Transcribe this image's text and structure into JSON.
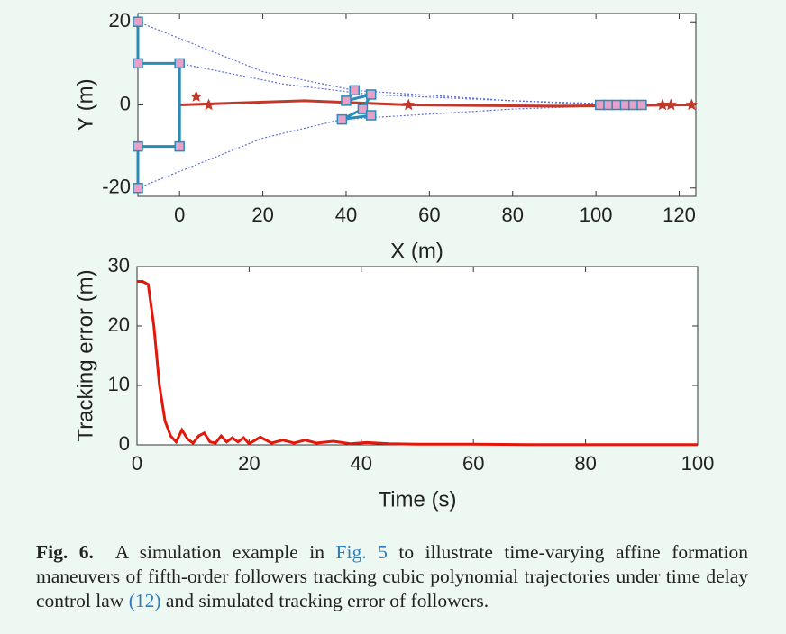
{
  "chart_data": [
    {
      "type": "line",
      "xlabel": "X (m)",
      "ylabel": "Y (m)",
      "xlim": [
        -10,
        124
      ],
      "ylim": [
        -22,
        22
      ],
      "xticks": [
        0,
        20,
        40,
        60,
        80,
        100,
        120
      ],
      "yticks": [
        -20,
        0,
        20
      ],
      "series": [
        {
          "color": "#5b6fd6",
          "linestyle": "dotted",
          "marker": "none",
          "x": [
            -10,
            20,
            42,
            80,
            103
          ],
          "values": [
            20,
            8,
            3.5,
            1,
            0
          ]
        },
        {
          "color": "#5b6fd6",
          "linestyle": "dotted",
          "marker": "none",
          "x": [
            -10,
            20,
            39,
            80,
            109
          ],
          "values": [
            -20,
            -8,
            -3.5,
            -1,
            0
          ]
        },
        {
          "color": "#5b6fd6",
          "linestyle": "dotted",
          "marker": "none",
          "x": [
            0,
            25,
            46,
            80,
            111
          ],
          "values": [
            10,
            5,
            2.5,
            1,
            0
          ]
        },
        {
          "color": "#c0392b",
          "linestyle": "solid",
          "marker": "none",
          "x": [
            0,
            30,
            55,
            90,
            123
          ],
          "values": [
            0,
            1,
            0,
            -0.3,
            0
          ]
        },
        {
          "color": "#2a8bb8",
          "linestyle": "solid",
          "marker": "square",
          "x": [
            -10,
            -10,
            0,
            0,
            -10,
            -10
          ],
          "values": [
            20,
            10,
            10,
            -10,
            -10,
            -20
          ]
        },
        {
          "color": "#2a8bb8",
          "linestyle": "solid",
          "marker": "square",
          "x": [
            42,
            40,
            46,
            44,
            39,
            46
          ],
          "values": [
            3.5,
            1,
            2.5,
            -1,
            -3.5,
            -2.5
          ]
        },
        {
          "color": "#2a8bb8",
          "linestyle": "solid",
          "marker": "square",
          "x": [
            101,
            103,
            105,
            107,
            109,
            111
          ],
          "values": [
            0,
            0,
            0,
            0,
            0,
            0
          ]
        },
        {
          "color": "#c0392b",
          "linestyle": "none",
          "marker": "star",
          "x": [
            4,
            7,
            55,
            116,
            118,
            123
          ],
          "values": [
            2,
            0,
            0,
            0,
            0,
            0
          ]
        }
      ]
    },
    {
      "type": "line",
      "xlabel": "Time (s)",
      "ylabel": "Tracking error (m)",
      "xlim": [
        0,
        100
      ],
      "ylim": [
        0,
        30
      ],
      "xticks": [
        0,
        20,
        40,
        60,
        80,
        100
      ],
      "yticks": [
        0,
        10,
        20,
        30
      ],
      "series": [
        {
          "color": "#e3170a",
          "linestyle": "solid",
          "marker": "none",
          "x": [
            0,
            1,
            2,
            3,
            4,
            5,
            6,
            7,
            8,
            9,
            10,
            11,
            12,
            13,
            14,
            15,
            16,
            17,
            18,
            19,
            20,
            22,
            24,
            26,
            28,
            30,
            32,
            35,
            38,
            41,
            45,
            50,
            60,
            70,
            80,
            90,
            100
          ],
          "values": [
            27.5,
            27.5,
            27,
            20,
            10,
            4,
            1.5,
            0.5,
            2.5,
            1,
            0.3,
            1.5,
            2,
            0.5,
            0.3,
            1.5,
            0.5,
            1.2,
            0.5,
            1.2,
            0.2,
            1.3,
            0.3,
            0.8,
            0.3,
            0.8,
            0.3,
            0.6,
            0.2,
            0.4,
            0.2,
            0.1,
            0.1,
            0.05,
            0.05,
            0.05,
            0.05
          ]
        }
      ]
    }
  ],
  "caption": {
    "label": "Fig. 6.",
    "text_1": "A simulation example in",
    "ref_1": "Fig. 5",
    "text_2": "to illustrate time-varying affine formation maneuvers of fifth-order followers tracking cubic polynomial trajectories under time delay control law",
    "ref_2": "(12)",
    "text_3": "and simulated tracking error of followers."
  }
}
